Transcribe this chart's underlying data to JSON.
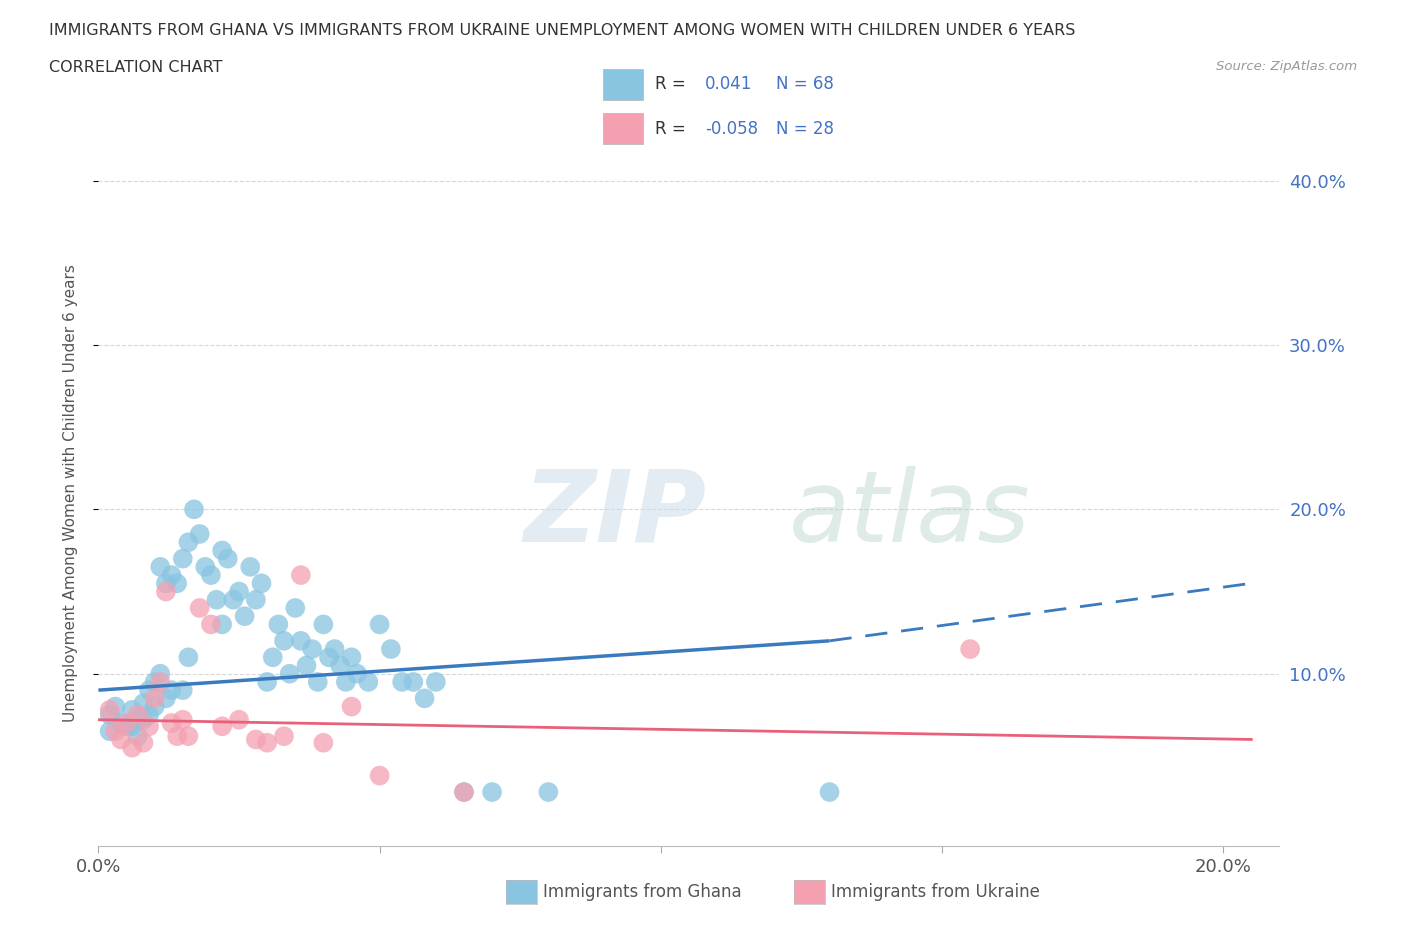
{
  "title_line1": "IMMIGRANTS FROM GHANA VS IMMIGRANTS FROM UKRAINE UNEMPLOYMENT AMONG WOMEN WITH CHILDREN UNDER 6 YEARS",
  "title_line2": "CORRELATION CHART",
  "source_text": "Source: ZipAtlas.com",
  "ylabel": "Unemployment Among Women with Children Under 6 years",
  "xlim": [
    0.0,
    0.21
  ],
  "ylim": [
    -0.005,
    0.425
  ],
  "xticks": [
    0.0,
    0.05,
    0.1,
    0.15,
    0.2
  ],
  "xtick_labels": [
    "0.0%",
    "",
    "",
    "",
    "20.0%"
  ],
  "yticks_right": [
    0.1,
    0.2,
    0.3,
    0.4
  ],
  "ytick_labels_right": [
    "10.0%",
    "20.0%",
    "30.0%",
    "40.0%"
  ],
  "r_ghana": 0.041,
  "n_ghana": 68,
  "r_ukraine": -0.058,
  "n_ukraine": 28,
  "ghana_color": "#89c4e1",
  "ukraine_color": "#f4a0b0",
  "ghana_line_color": "#3a7bbf",
  "ukraine_line_color": "#e8607a",
  "ghana_x": [
    0.002,
    0.002,
    0.003,
    0.004,
    0.005,
    0.006,
    0.006,
    0.007,
    0.007,
    0.008,
    0.008,
    0.009,
    0.009,
    0.01,
    0.01,
    0.011,
    0.011,
    0.012,
    0.012,
    0.013,
    0.013,
    0.014,
    0.015,
    0.015,
    0.016,
    0.016,
    0.017,
    0.018,
    0.019,
    0.02,
    0.021,
    0.022,
    0.022,
    0.023,
    0.024,
    0.025,
    0.026,
    0.027,
    0.028,
    0.029,
    0.03,
    0.031,
    0.032,
    0.033,
    0.034,
    0.035,
    0.036,
    0.037,
    0.038,
    0.039,
    0.04,
    0.041,
    0.042,
    0.043,
    0.044,
    0.045,
    0.046,
    0.048,
    0.05,
    0.052,
    0.054,
    0.056,
    0.058,
    0.06,
    0.065,
    0.07,
    0.08,
    0.13
  ],
  "ghana_y": [
    0.075,
    0.065,
    0.08,
    0.07,
    0.068,
    0.078,
    0.068,
    0.072,
    0.062,
    0.082,
    0.072,
    0.09,
    0.075,
    0.095,
    0.08,
    0.165,
    0.1,
    0.155,
    0.085,
    0.16,
    0.09,
    0.155,
    0.17,
    0.09,
    0.18,
    0.11,
    0.2,
    0.185,
    0.165,
    0.16,
    0.145,
    0.175,
    0.13,
    0.17,
    0.145,
    0.15,
    0.135,
    0.165,
    0.145,
    0.155,
    0.095,
    0.11,
    0.13,
    0.12,
    0.1,
    0.14,
    0.12,
    0.105,
    0.115,
    0.095,
    0.13,
    0.11,
    0.115,
    0.105,
    0.095,
    0.11,
    0.1,
    0.095,
    0.13,
    0.115,
    0.095,
    0.095,
    0.085,
    0.095,
    0.028,
    0.028,
    0.028,
    0.028
  ],
  "ukraine_x": [
    0.002,
    0.003,
    0.004,
    0.005,
    0.006,
    0.007,
    0.008,
    0.009,
    0.01,
    0.011,
    0.012,
    0.013,
    0.014,
    0.015,
    0.016,
    0.018,
    0.02,
    0.022,
    0.025,
    0.028,
    0.03,
    0.033,
    0.036,
    0.04,
    0.045,
    0.05,
    0.065,
    0.155
  ],
  "ukraine_y": [
    0.078,
    0.065,
    0.06,
    0.07,
    0.055,
    0.075,
    0.058,
    0.068,
    0.085,
    0.095,
    0.15,
    0.07,
    0.062,
    0.072,
    0.062,
    0.14,
    0.13,
    0.068,
    0.072,
    0.06,
    0.058,
    0.062,
    0.16,
    0.058,
    0.08,
    0.038,
    0.028,
    0.115
  ],
  "ghana_trend_x0": 0.0,
  "ghana_trend_x_solid_end": 0.13,
  "ghana_trend_x_dashed_end": 0.205,
  "ghana_trend_y0": 0.09,
  "ghana_trend_y_solid_end": 0.12,
  "ghana_trend_y_dashed_end": 0.155,
  "ukraine_trend_x0": 0.0,
  "ukraine_trend_x_end": 0.205,
  "ukraine_trend_y0": 0.072,
  "ukraine_trend_y_end": 0.06
}
